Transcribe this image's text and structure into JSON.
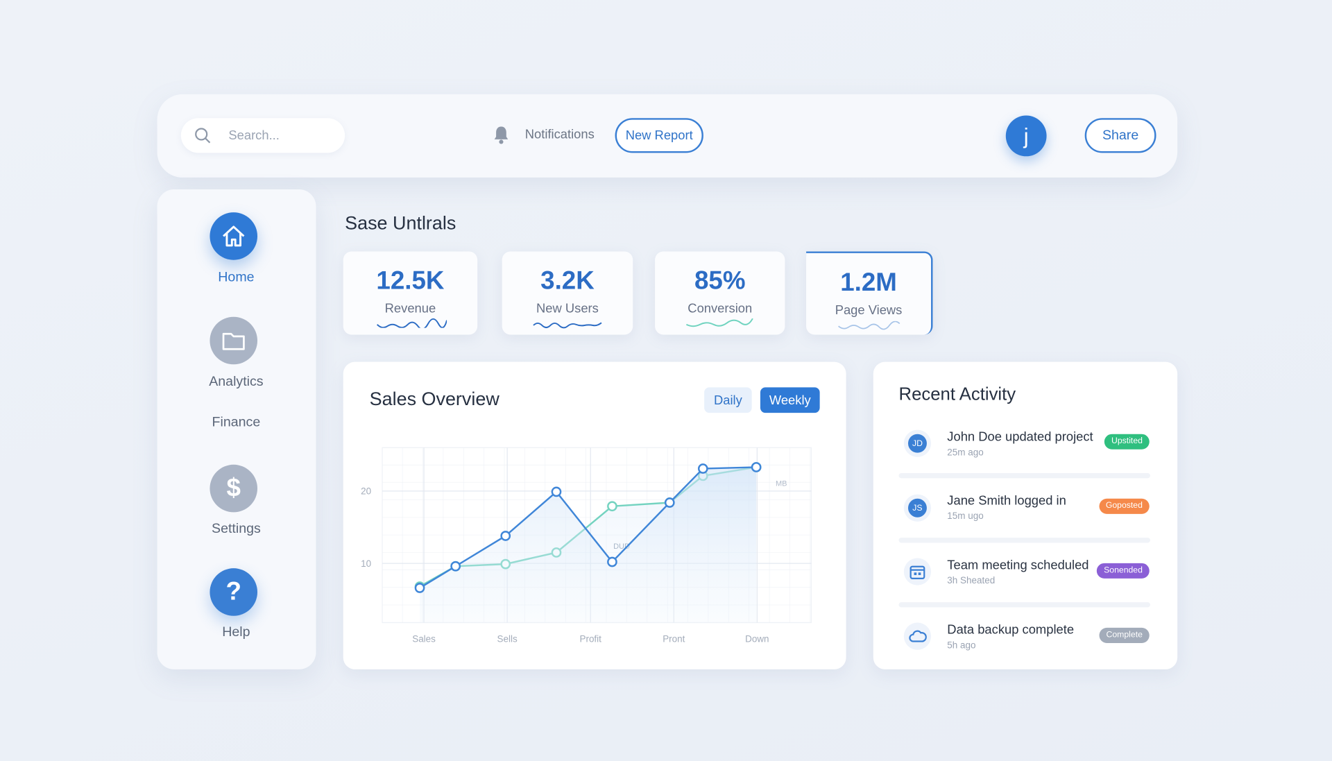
{
  "topbar": {
    "search_placeholder": "Search...",
    "notifications": "Notifications",
    "new_report": "New Report",
    "avatar": "j",
    "share": "Share"
  },
  "sidebar": [
    {
      "label": "Home"
    },
    {
      "label": "Analytics"
    },
    {
      "label": "Finance"
    },
    {
      "label": "Settings",
      "icon": "$"
    },
    {
      "label": "Help",
      "icon": "?"
    }
  ],
  "section_title": "Sase Untlrals",
  "stats": [
    {
      "value": "12.5K",
      "label": "Revenue"
    },
    {
      "value": "3.2K",
      "label": "New Users"
    },
    {
      "value": "85%",
      "label": "Conversion"
    },
    {
      "value": "1.2M",
      "label": "Page Views"
    }
  ],
  "sales_overview": {
    "title": "Sales Overview",
    "toggles": [
      "Daily",
      "Weekly"
    ],
    "chart": {
      "type": "line",
      "x": [
        -0.05,
        0.38,
        0.98,
        1.59,
        2.26,
        2.95,
        3.35,
        3.99
      ],
      "series": [
        {
          "color": "#3f86d8",
          "values": [
            6.6,
            9.6,
            13.8,
            19.9,
            10.2,
            18.4,
            23.1,
            23.3
          ]
        },
        {
          "color": "#74d3c0",
          "values": [
            6.8,
            9.6,
            9.9,
            11.5,
            17.9,
            18.4,
            22.1,
            23.3
          ]
        }
      ],
      "xlim": [
        -0.5,
        4.65
      ],
      "xticks": [
        {
          "value": 0,
          "label": "Sales"
        },
        {
          "value": 1,
          "label": "Sells"
        },
        {
          "value": 2,
          "label": "Profit"
        },
        {
          "value": 3,
          "label": "Pront"
        },
        {
          "value": 4,
          "label": "Down"
        }
      ],
      "ylim": [
        1.8,
        26
      ],
      "yticks": [
        10,
        20
      ],
      "annotations": [
        "DUD",
        "MB"
      ],
      "grid": true
    }
  },
  "recent_activity": {
    "title": "Recent Activity",
    "items": [
      {
        "initials": "JD",
        "text": "John Doe updated project",
        "time": "25m ago",
        "badge": "Upstited",
        "badge_color": "#2fbf7f"
      },
      {
        "initials": "JS",
        "text": "Jane Smith logged in",
        "time": "15m ugo",
        "badge": "Goposted",
        "badge_color": "#f5894a"
      },
      {
        "text": "Team meeting scheduled",
        "time": "3h Sheated",
        "badge": "Sonended",
        "badge_color": "#8b5fd6"
      },
      {
        "text": "Data backup complete",
        "time": "5h ago",
        "badge": "Complete",
        "badge_color": "#a3acba"
      }
    ]
  }
}
